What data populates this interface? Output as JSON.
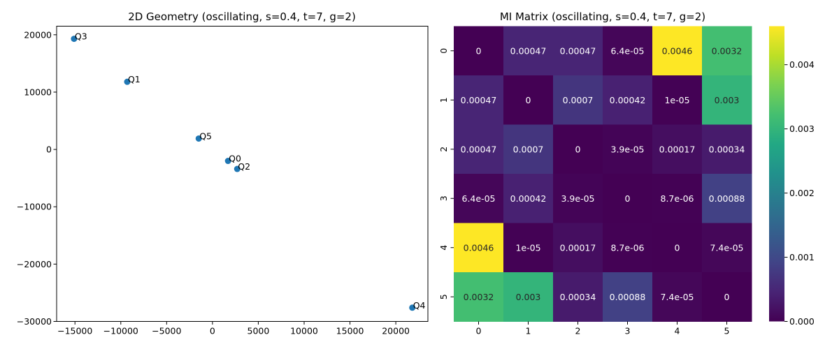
{
  "chart_data": [
    {
      "type": "scatter",
      "title": "2D Geometry (oscillating, s=0.4, t=7, g=2)",
      "xlabel": "",
      "ylabel": "",
      "xlim": [
        -17000,
        23500
      ],
      "ylim": [
        -30000,
        21500
      ],
      "xticks": [
        -15000,
        -10000,
        -5000,
        0,
        5000,
        10000,
        15000,
        20000
      ],
      "xtick_labels": [
        "−15000",
        "−10000",
        "−5000",
        "0",
        "5000",
        "10000",
        "15000",
        "20000"
      ],
      "yticks": [
        20000,
        10000,
        0,
        -10000,
        -20000,
        -30000
      ],
      "ytick_labels": [
        "20000",
        "10000",
        "0",
        "−10000",
        "−20000",
        "−30000"
      ],
      "grid": false,
      "marker_color": "#1f77b4",
      "points": [
        {
          "label": "Q3",
          "x": -15100,
          "y": 19300
        },
        {
          "label": "Q1",
          "x": -9300,
          "y": 11800
        },
        {
          "label": "Q5",
          "x": -1500,
          "y": 1900
        },
        {
          "label": "Q0",
          "x": 1700,
          "y": -2000
        },
        {
          "label": "Q2",
          "x": 2700,
          "y": -3400
        },
        {
          "label": "Q4",
          "x": 21800,
          "y": -27600
        }
      ]
    },
    {
      "type": "heatmap",
      "title": "MI Matrix (oscillating, s=0.4, t=7, g=2)",
      "colormap": "viridis",
      "x_categories": [
        "0",
        "1",
        "2",
        "3",
        "4",
        "5"
      ],
      "y_categories": [
        "0",
        "1",
        "2",
        "3",
        "4",
        "5"
      ],
      "values": [
        [
          0,
          0.00047,
          0.00047,
          6.4e-05,
          0.0046,
          0.0032
        ],
        [
          0.00047,
          0,
          0.0007,
          0.00042,
          1e-05,
          0.003
        ],
        [
          0.00047,
          0.0007,
          0,
          3.9e-05,
          0.00017,
          0.00034
        ],
        [
          6.4e-05,
          0.00042,
          3.9e-05,
          0,
          8.7e-06,
          0.00088
        ],
        [
          0.0046,
          1e-05,
          0.00017,
          8.7e-06,
          0,
          7.4e-05
        ],
        [
          0.0032,
          0.003,
          0.00034,
          0.00088,
          7.4e-05,
          0
        ]
      ],
      "cell_labels": [
        [
          "0",
          "0.00047",
          "0.00047",
          "6.4e-05",
          "0.0046",
          "0.0032"
        ],
        [
          "0.00047",
          "0",
          "0.0007",
          "0.00042",
          "1e-05",
          "0.003"
        ],
        [
          "0.00047",
          "0.0007",
          "0",
          "3.9e-05",
          "0.00017",
          "0.00034"
        ],
        [
          "6.4e-05",
          "0.00042",
          "3.9e-05",
          "0",
          "8.7e-06",
          "0.00088"
        ],
        [
          "0.0046",
          "1e-05",
          "0.00017",
          "8.7e-06",
          "0",
          "7.4e-05"
        ],
        [
          "0.0032",
          "0.003",
          "0.00034",
          "0.00088",
          "7.4e-05",
          "0"
        ]
      ],
      "vmin": 0,
      "vmax": 0.0046,
      "colorbar_ticks": [
        0,
        0.001,
        0.002,
        0.003,
        0.004
      ],
      "colorbar_tick_labels": [
        "0.000",
        "0.001",
        "0.002",
        "0.003",
        "0.004"
      ]
    }
  ]
}
